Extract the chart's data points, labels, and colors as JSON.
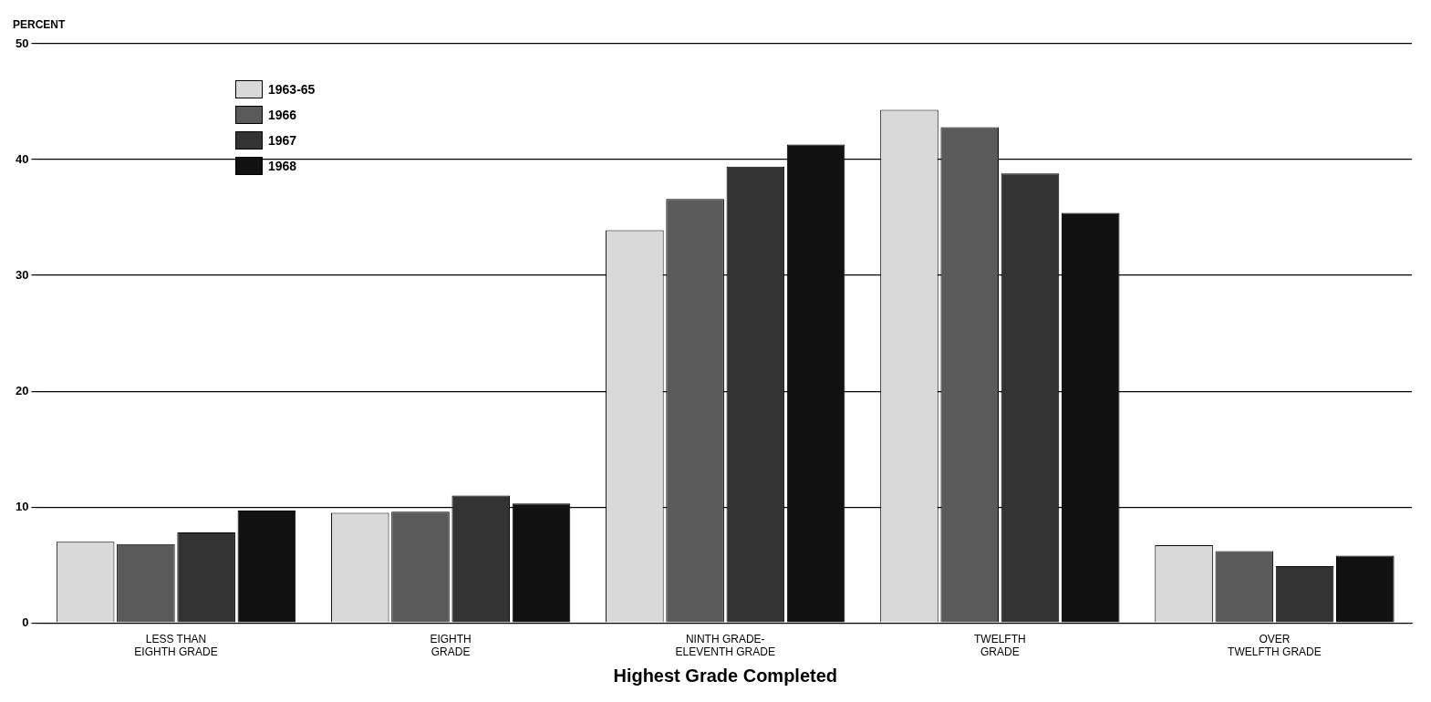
{
  "chart_data": {
    "type": "bar",
    "ylabel": "PERCENT",
    "xlabel": "Highest Grade Completed",
    "categories": [
      "LESS THAN\nEIGHTH GRADE",
      "EIGHTH\nGRADE",
      "NINTH GRADE-\nELEVENTH GRADE",
      "TWELFTH\nGRADE",
      "OVER\nTWELFTH GRADE"
    ],
    "series": [
      {
        "name": "1963-65",
        "color": "#d9d9d9",
        "values": [
          7.0,
          9.5,
          33.9,
          44.3,
          6.7
        ]
      },
      {
        "name": "1966",
        "color": "#5a5a5a",
        "values": [
          6.8,
          9.6,
          36.6,
          42.8,
          6.2
        ]
      },
      {
        "name": "1967",
        "color": "#333333",
        "values": [
          7.8,
          11.0,
          39.4,
          38.8,
          4.9
        ]
      },
      {
        "name": "1968",
        "color": "#111111",
        "values": [
          9.7,
          10.3,
          41.3,
          35.4,
          5.8
        ]
      }
    ],
    "ylim": [
      0,
      50
    ],
    "yticks": [
      0,
      10,
      20,
      30,
      40,
      50
    ],
    "grid": "y",
    "legend": "top left"
  }
}
